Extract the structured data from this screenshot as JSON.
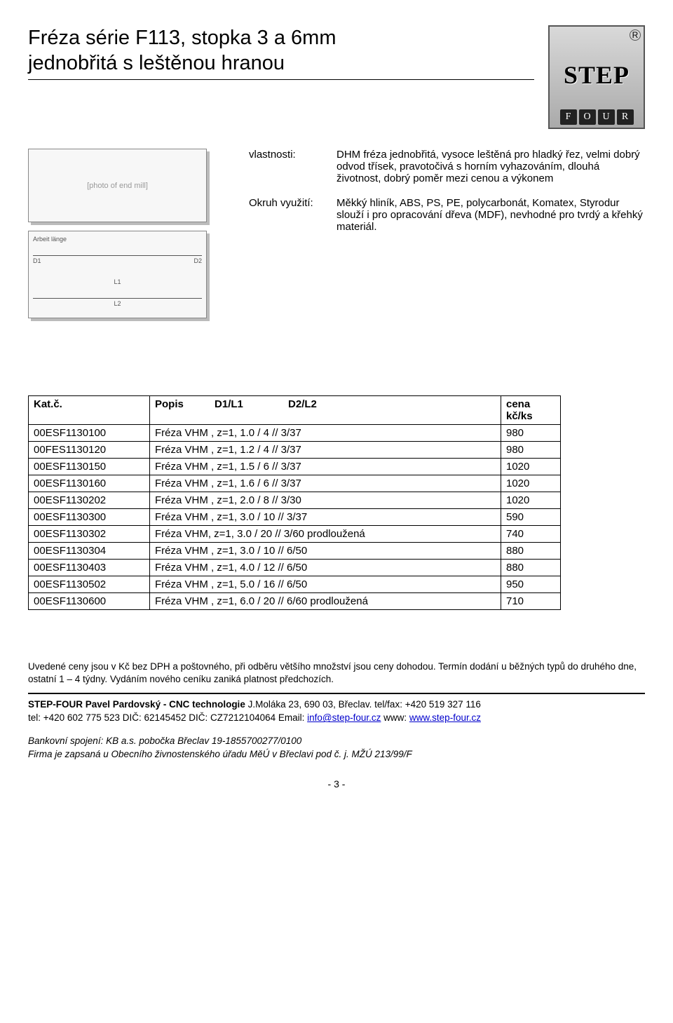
{
  "title_line1": "Fréza série F113, stopka 3 a 6mm",
  "title_line2": "jednobřitá s leštěnou hranou",
  "logo": {
    "step": "STEP",
    "four": [
      "F",
      "O",
      "U",
      "R"
    ],
    "reg": "R"
  },
  "tool_photo_placeholder": "[photo of end mill]",
  "diagram_labels": {
    "arbeit": "Arbeit länge",
    "d1": "D1",
    "d2": "D2",
    "l1": "L1",
    "l2": "L2"
  },
  "props": {
    "vlastnosti_label": "vlastnosti:",
    "vlastnosti_value": "DHM fréza jednobřitá, vysoce leštěná pro hladký řez, velmi dobrý odvod třísek, pravotočivá s horním vyhazováním, dlouhá životnost, dobrý poměr mezi cenou a výkonem",
    "okruh_label": "Okruh využití:",
    "okruh_value": "Měkký hliník, ABS, PS, PE, polycarbonát, Komatex, Styrodur slouží i pro opracování dřeva (MDF), nevhodné pro tvrdý a křehký materiál."
  },
  "table": {
    "headers": {
      "kat": "Kat.č.",
      "popis": "Popis",
      "d1": "D1/L1",
      "d2": "D2/L2",
      "cena": "cena kč/ks"
    },
    "rows": [
      {
        "kat": "00ESF1130100",
        "desc": "Fréza  VHM , z=1, 1.0 / 4 // 3/37",
        "price": "980"
      },
      {
        "kat": "00FES1130120",
        "desc": "Fréza  VHM , z=1, 1.2 / 4 // 3/37",
        "price": "980"
      },
      {
        "kat": "00ESF1130150",
        "desc": "Fréza  VHM , z=1, 1.5 / 6 // 3/37",
        "price": "1020"
      },
      {
        "kat": "00ESF1130160",
        "desc": "Fréza  VHM , z=1, 1.6 / 6 // 3/37",
        "price": "1020"
      },
      {
        "kat": "00ESF1130202",
        "desc": "Fréza  VHM , z=1, 2.0 / 8 // 3/30",
        "price": "1020"
      },
      {
        "kat": "00ESF1130300",
        "desc": "Fréza  VHM , z=1, 3.0 / 10 // 3/37",
        "price": "590"
      },
      {
        "kat": "00ESF1130302",
        "desc": "Fréza  VHM, z=1, 3.0 / 20 // 3/60 prodloužená",
        "price": "740"
      },
      {
        "kat": "00ESF1130304",
        "desc": "Fréza  VHM , z=1, 3.0 / 10 // 6/50",
        "price": "880"
      },
      {
        "kat": "00ESF1130403",
        "desc": "Fréza  VHM , z=1, 4.0 / 12 // 6/50",
        "price": "880"
      },
      {
        "kat": "00ESF1130502",
        "desc": "Fréza  VHM , z=1, 5.0 / 16 // 6/50",
        "price": "950"
      },
      {
        "kat": "00ESF1130600",
        "desc": "Fréza VHM , z=1, 6.0 / 20 // 6/60 prodloužená",
        "price": "710"
      }
    ]
  },
  "notes": "Uvedené ceny jsou v Kč bez DPH a poštovného, při odběru většího množství jsou ceny dohodou. Termín dodání u běžných typů do druhého dne, ostatní 1 – 4 týdny. Vydáním nového ceníku zaniká platnost předchozích.",
  "footer": {
    "line1_bold": "STEP-FOUR  Pavel Pardovský - CNC technologie",
    "line1_rest": "  J.Moláka 23,  690 03, Břeclav.  tel/fax: +420 519 327 116",
    "line2_pre": "tel: +420 602 775 523  DIČ: 62145452  DIČ: CZ7212104064  Email: ",
    "email": "info@step-four.cz",
    "line2_mid": "  www: ",
    "www": "www.step-four.cz",
    "bank1": "Bankovní spojení: KB a.s. pobočka Břeclav 19-1855700277/0100",
    "bank2": "Firma je zapsaná u Obecního živnostenského úřadu MěÚ v Břeclavi pod č. j. MŽÚ 213/99/F"
  },
  "page_number": "- 3 -"
}
